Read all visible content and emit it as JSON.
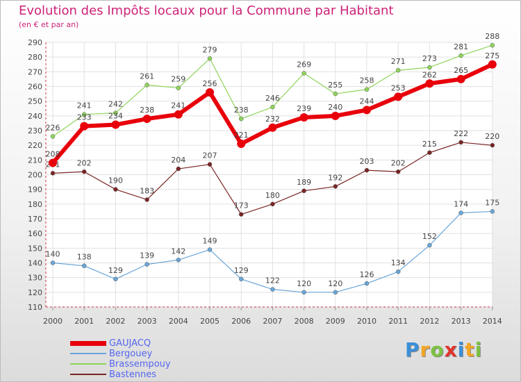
{
  "header": {
    "title": "Evolution des Impôts locaux pour la Commune par Habitant",
    "subtitle": "(en € et par an)"
  },
  "logo": {
    "text": "Proxiti",
    "letters": [
      {
        "ch": "P",
        "color": "#3b8fd9"
      },
      {
        "ch": "r",
        "color": "#f5a623"
      },
      {
        "ch": "o",
        "color": "#7dc242"
      },
      {
        "ch": "x",
        "color": "#e2342b"
      },
      {
        "ch": "i",
        "color": "#3b8fd9"
      },
      {
        "ch": "t",
        "color": "#f5a623"
      },
      {
        "ch": "i",
        "color": "#7dc242"
      }
    ]
  },
  "chart_data": {
    "type": "line",
    "title": "Evolution des Impôts locaux pour la Commune par Habitant",
    "subtitle": "(en € et par an)",
    "categories": [
      "2000",
      "2001",
      "2002",
      "2003",
      "2004",
      "2005",
      "2006",
      "2007",
      "2008",
      "2009",
      "2010",
      "2011",
      "2012",
      "2013",
      "2014"
    ],
    "ylim": [
      110,
      290
    ],
    "yticks": [
      110,
      120,
      130,
      140,
      150,
      160,
      170,
      180,
      190,
      200,
      210,
      220,
      230,
      240,
      250,
      260,
      270,
      280,
      290
    ],
    "grid": true,
    "legend_position": "bottom-left",
    "series": [
      {
        "name": "GAUJACQ",
        "color": "#e8000b",
        "values": [
          208,
          233,
          234,
          238,
          241,
          256,
          221,
          232,
          239,
          240,
          244,
          253,
          262,
          265,
          275
        ]
      },
      {
        "name": "Bergouey",
        "color": "#6aa6d8",
        "values": [
          140,
          138,
          129,
          139,
          142,
          149,
          129,
          122,
          120,
          120,
          126,
          134,
          152,
          174,
          175
        ]
      },
      {
        "name": "Brassempouy",
        "color": "#8ed45a",
        "values": [
          226,
          241,
          242,
          261,
          259,
          279,
          238,
          246,
          269,
          255,
          258,
          271,
          273,
          281,
          288
        ]
      },
      {
        "name": "Bastennes",
        "color": "#7a2424",
        "values": [
          201,
          202,
          190,
          183,
          204,
          207,
          173,
          180,
          189,
          192,
          203,
          202,
          215,
          222,
          220
        ]
      }
    ]
  }
}
